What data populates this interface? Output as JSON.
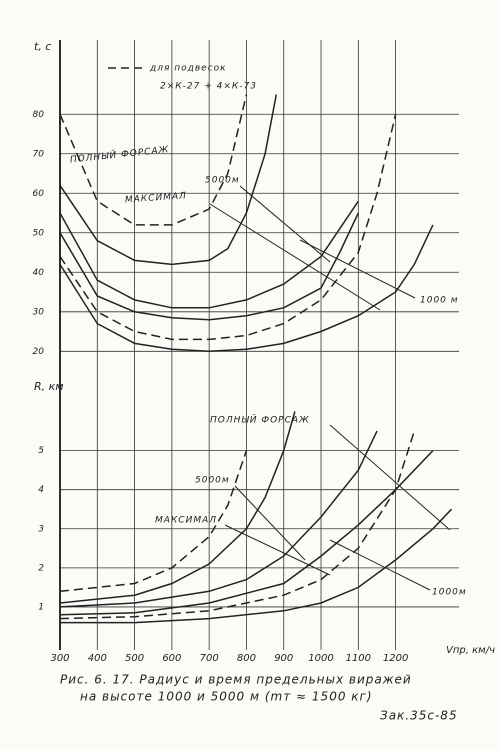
{
  "chart_data": [
    {
      "type": "line",
      "y_label": "t, c",
      "xlim": [
        300,
        1370
      ],
      "ylim": [
        14,
        95
      ],
      "yticks": [
        20,
        30,
        40,
        50,
        60,
        70,
        80
      ],
      "grid": true,
      "legend_text": [
        "для подвесок",
        "2×К-27 + 4×К-73"
      ],
      "annotations": [
        "ПОЛНЫЙ ФОРСАЖ",
        "5000м",
        "МАКСИМАЛ",
        "1000 м"
      ],
      "series": [
        {
          "color": "#222",
          "dashed": false,
          "x": [
            300,
            400,
            500,
            600,
            700,
            800,
            900,
            1000,
            1100,
            1200,
            1250,
            1300
          ],
          "values": [
            42,
            27,
            22,
            20.5,
            20,
            20.5,
            22,
            25,
            29,
            35,
            42,
            52
          ]
        },
        {
          "color": "#222",
          "dashed": false,
          "x": [
            300,
            400,
            500,
            600,
            700,
            800,
            900,
            1000,
            1050,
            1100
          ],
          "values": [
            50,
            34,
            30,
            28.5,
            28,
            29,
            31,
            36,
            45,
            55
          ]
        },
        {
          "color": "#222",
          "dashed": false,
          "x": [
            300,
            400,
            500,
            600,
            700,
            800,
            900,
            1000,
            1100
          ],
          "values": [
            55,
            38,
            33,
            31,
            31,
            33,
            37,
            44,
            58
          ]
        },
        {
          "color": "#222",
          "dashed": false,
          "x": [
            300,
            400,
            500,
            600,
            700,
            750,
            800,
            850,
            880
          ],
          "values": [
            62,
            48,
            43,
            42,
            43,
            46,
            55,
            70,
            85
          ]
        },
        {
          "color": "#222",
          "dashed": true,
          "x": [
            300,
            400,
            500,
            600,
            700,
            800,
            900,
            1000,
            1100,
            1150,
            1200
          ],
          "values": [
            44,
            30,
            25,
            23,
            23,
            24,
            27,
            33,
            45,
            60,
            80
          ]
        },
        {
          "color": "#222",
          "dashed": true,
          "x": [
            300,
            400,
            500,
            600,
            700,
            750,
            800
          ],
          "values": [
            80,
            58,
            52,
            52,
            56,
            65,
            85
          ]
        }
      ]
    },
    {
      "type": "line",
      "y_label": "R, км",
      "x_label": "Vпр, км/ч",
      "xlim": [
        300,
        1370
      ],
      "ylim": [
        0,
        6.5
      ],
      "xticks": [
        300,
        400,
        500,
        600,
        700,
        800,
        900,
        1000,
        1100,
        1200
      ],
      "yticks": [
        1,
        2,
        3,
        4,
        5
      ],
      "grid": true,
      "annotations": [
        "ПОЛНЫЙ ФОРСАЖ",
        "5000м",
        "МАКСИМАЛ",
        "1000м"
      ],
      "series": [
        {
          "color": "#222",
          "dashed": false,
          "x": [
            300,
            500,
            700,
            900,
            1000,
            1100,
            1200,
            1300,
            1350
          ],
          "values": [
            0.6,
            0.6,
            0.7,
            0.9,
            1.1,
            1.5,
            2.2,
            3.0,
            3.5
          ]
        },
        {
          "color": "#222",
          "dashed": false,
          "x": [
            300,
            500,
            700,
            900,
            1000,
            1100,
            1200,
            1300
          ],
          "values": [
            0.8,
            0.85,
            1.1,
            1.6,
            2.3,
            3.1,
            4.0,
            5.0
          ]
        },
        {
          "color": "#222",
          "dashed": false,
          "x": [
            300,
            500,
            700,
            800,
            900,
            1000,
            1100,
            1150
          ],
          "values": [
            1.0,
            1.1,
            1.4,
            1.7,
            2.3,
            3.3,
            4.5,
            5.5
          ]
        },
        {
          "color": "#222",
          "dashed": false,
          "x": [
            300,
            500,
            600,
            700,
            800,
            850,
            900,
            930
          ],
          "values": [
            1.1,
            1.3,
            1.6,
            2.1,
            3.0,
            3.8,
            5.0,
            6.0
          ]
        },
        {
          "color": "#222",
          "dashed": true,
          "x": [
            300,
            500,
            700,
            900,
            1000,
            1100,
            1200,
            1250
          ],
          "values": [
            0.7,
            0.75,
            0.9,
            1.3,
            1.7,
            2.5,
            4.0,
            5.5
          ]
        },
        {
          "color": "#222",
          "dashed": true,
          "x": [
            300,
            500,
            600,
            700,
            750,
            800
          ],
          "values": [
            1.4,
            1.6,
            2.0,
            2.8,
            3.6,
            5.0
          ]
        }
      ]
    }
  ],
  "caption": {
    "line1": "Рис. 6. 17.  Радиус и время предельных виражей",
    "line2": "на высоте 1000 и 5000 м (mт ≈ 1500 кг)",
    "order": "Зак.35с-85"
  }
}
